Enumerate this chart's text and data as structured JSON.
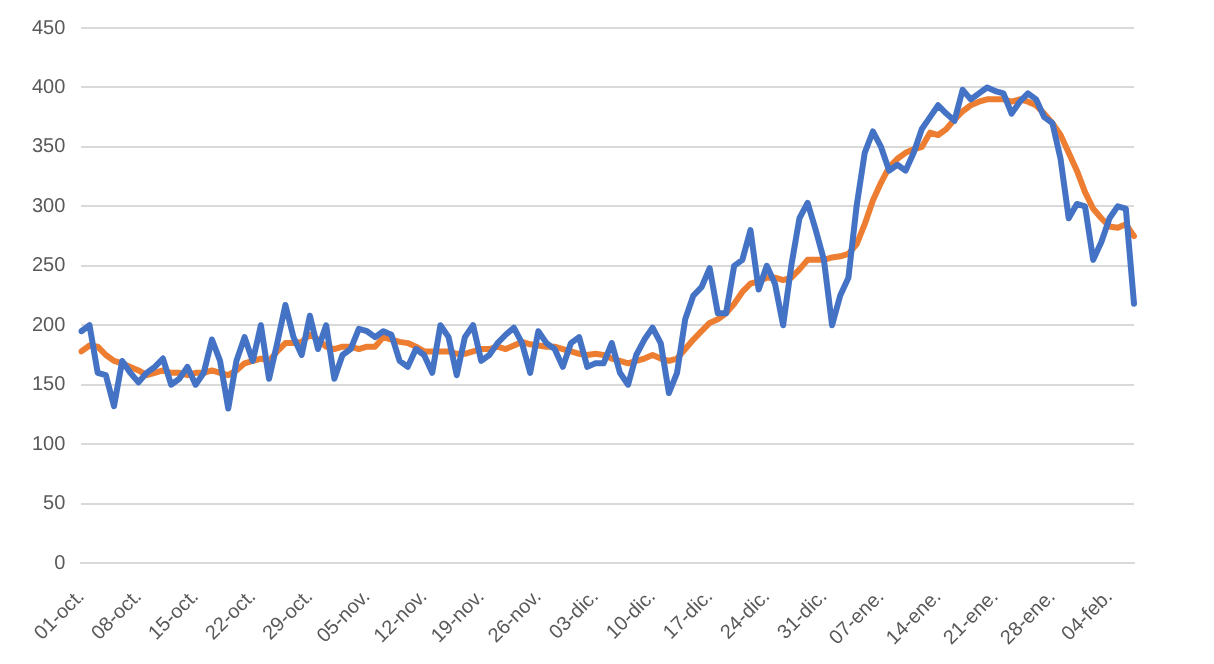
{
  "chart_data": {
    "type": "line",
    "categories": [
      "01-oct.",
      null,
      null,
      null,
      null,
      null,
      null,
      "08-oct.",
      null,
      null,
      null,
      null,
      null,
      null,
      "15-oct.",
      null,
      null,
      null,
      null,
      null,
      null,
      "22-oct.",
      null,
      null,
      null,
      null,
      null,
      null,
      "29-oct.",
      null,
      null,
      null,
      null,
      null,
      null,
      "05-nov.",
      null,
      null,
      null,
      null,
      null,
      null,
      "12-nov.",
      null,
      null,
      null,
      null,
      null,
      null,
      "19-nov.",
      null,
      null,
      null,
      null,
      null,
      null,
      "26-nov.",
      null,
      null,
      null,
      null,
      null,
      null,
      "03-dic.",
      null,
      null,
      null,
      null,
      null,
      null,
      "10-dic.",
      null,
      null,
      null,
      null,
      null,
      null,
      "17-dic.",
      null,
      null,
      null,
      null,
      null,
      null,
      "24-dic.",
      null,
      null,
      null,
      null,
      null,
      null,
      "31-dic.",
      null,
      null,
      null,
      null,
      null,
      null,
      "07-ene.",
      null,
      null,
      null,
      null,
      null,
      null,
      "14-ene.",
      null,
      null,
      null,
      null,
      null,
      null,
      "21-ene.",
      null,
      null,
      null,
      null,
      null,
      null,
      "28-ene.",
      null,
      null,
      null,
      null,
      null,
      null,
      "04-feb.",
      null,
      null,
      null
    ],
    "series": [
      {
        "color": "#4472c4",
        "values": [
          195,
          200,
          160,
          158,
          132,
          170,
          160,
          152,
          160,
          165,
          172,
          150,
          155,
          165,
          150,
          160,
          188,
          170,
          130,
          170,
          190,
          170,
          200,
          155,
          185,
          217,
          190,
          175,
          208,
          180,
          200,
          155,
          175,
          180,
          197,
          195,
          190,
          195,
          192,
          170,
          165,
          180,
          175,
          160,
          200,
          190,
          158,
          190,
          200,
          170,
          175,
          185,
          192,
          198,
          185,
          160,
          195,
          185,
          180,
          165,
          185,
          190,
          165,
          168,
          168,
          185,
          160,
          150,
          175,
          188,
          198,
          185,
          143,
          160,
          205,
          225,
          232,
          248,
          210,
          210,
          250,
          255,
          280,
          230,
          250,
          235,
          200,
          250,
          290,
          303,
          280,
          255,
          200,
          225,
          240,
          300,
          345,
          363,
          350,
          330,
          335,
          330,
          345,
          365,
          375,
          385,
          378,
          372,
          398,
          390,
          395,
          400,
          397,
          395,
          378,
          388,
          395,
          390,
          375,
          370,
          340,
          290,
          302,
          300,
          255,
          270,
          290,
          300,
          298,
          218
        ]
      },
      {
        "color": "#ed7d31",
        "values": [
          178,
          183,
          182,
          175,
          170,
          168,
          165,
          162,
          158,
          160,
          162,
          160,
          160,
          158,
          160,
          160,
          162,
          160,
          158,
          162,
          168,
          170,
          172,
          170,
          178,
          185,
          185,
          186,
          192,
          188,
          182,
          180,
          182,
          182,
          180,
          182,
          182,
          190,
          188,
          186,
          185,
          182,
          178,
          178,
          178,
          178,
          176,
          176,
          178,
          180,
          180,
          182,
          180,
          183,
          186,
          184,
          183,
          182,
          182,
          180,
          178,
          176,
          175,
          176,
          175,
          172,
          170,
          168,
          170,
          172,
          175,
          172,
          170,
          172,
          180,
          188,
          195,
          202,
          205,
          210,
          218,
          228,
          235,
          237,
          240,
          240,
          238,
          240,
          247,
          255,
          255,
          255,
          257,
          258,
          260,
          268,
          285,
          305,
          320,
          333,
          340,
          345,
          348,
          350,
          362,
          360,
          365,
          373,
          380,
          385,
          388,
          390,
          390,
          390,
          388,
          390,
          388,
          385,
          378,
          370,
          360,
          345,
          330,
          312,
          298,
          290,
          283,
          282,
          285,
          275
        ]
      }
    ],
    "ylim": [
      0,
      450
    ],
    "yticks": [
      0,
      50,
      100,
      150,
      200,
      250,
      300,
      350,
      400,
      450
    ],
    "grid": "y",
    "legend": false,
    "marker": "none",
    "line_style": "solid"
  }
}
